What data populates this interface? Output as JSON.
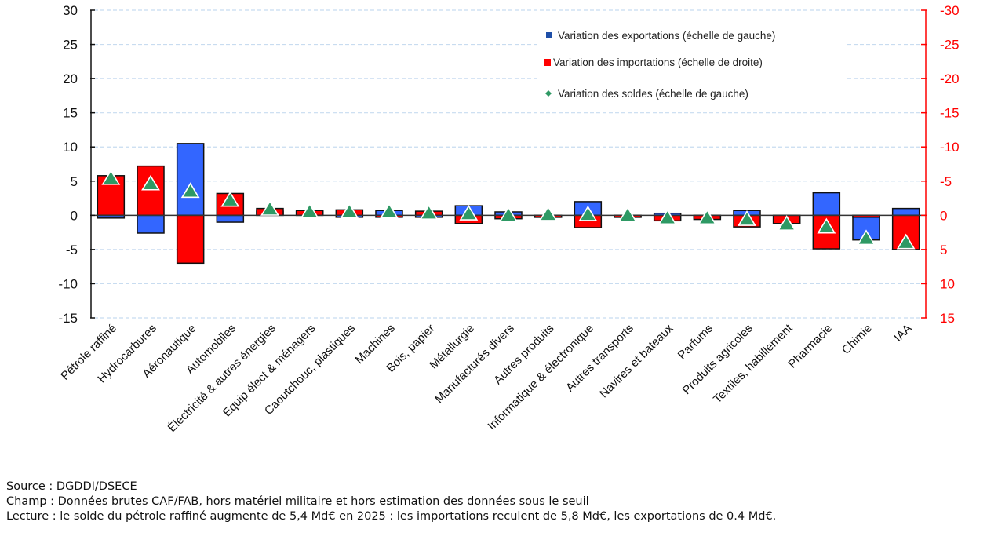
{
  "chart_data": {
    "type": "bar",
    "title": "",
    "xlabel": "",
    "ylabel_left": "",
    "ylabel_right": "",
    "ylim_left": [
      -15,
      30
    ],
    "ylim_right": [
      15,
      -30
    ],
    "yticks_left": [
      30,
      25,
      20,
      15,
      10,
      5,
      0,
      -5,
      -10,
      -15
    ],
    "yticks_right": [
      -30,
      -25,
      -20,
      -15,
      -10,
      -5,
      0,
      5,
      10,
      15
    ],
    "grid": true,
    "legend_position": "top-right",
    "categories": [
      "Pétrole raffiné",
      "Hydrocarbures",
      "Aéronautique",
      "Automobiles",
      "Électricité & autres énergies",
      "Equip élect & ménagers",
      "Caoutchouc, plastiques",
      "Machines",
      "Bois, papier",
      "Métallurgie",
      "Manufacturés divers",
      "Autres produits",
      "Informatique & électronique",
      "Autres transports",
      "Navires et bateaux",
      "Parfums",
      "Produits agricoles",
      "Textiles, habillement",
      "Pharmacie",
      "Chimie",
      "IAA"
    ],
    "series": [
      {
        "name": "Variation des exportations (échelle de gauche)",
        "type": "bar",
        "axis": "left",
        "color": "#3366ff",
        "values": [
          -0.4,
          -2.6,
          10.5,
          -1.0,
          0.6,
          0.6,
          -0.2,
          0.7,
          -0.2,
          1.4,
          0.5,
          -0.2,
          2.0,
          -0.2,
          0.3,
          -0.1,
          0.7,
          -1.2,
          3.3,
          -3.6,
          1.0
        ]
      },
      {
        "name": "Variation des importations (échelle de droite)",
        "type": "bar",
        "axis": "right",
        "color": "#ff0000",
        "values": [
          -5.8,
          -7.2,
          7.0,
          -3.2,
          -1.0,
          -0.7,
          -0.8,
          0.2,
          -0.6,
          1.2,
          0.5,
          0.2,
          1.8,
          0.2,
          0.8,
          0.6,
          1.7,
          1.2,
          4.9,
          0.0,
          5.0
        ]
      },
      {
        "name": "Variation des soldes (échelle de gauche)",
        "type": "scatter",
        "axis": "left",
        "color": "#2e9964",
        "marker": "triangle",
        "values": [
          5.4,
          4.6,
          3.5,
          2.2,
          0.9,
          0.5,
          0.5,
          0.5,
          0.3,
          0.2,
          0.0,
          0.1,
          0.1,
          0.0,
          -0.4,
          -0.4,
          -0.6,
          -1.3,
          -1.7,
          -3.4,
          -4.0
        ]
      }
    ]
  },
  "legend": {
    "items": [
      {
        "label": "Variation des exportations (échelle de gauche)",
        "color": "#1f4fa8",
        "shape": "square"
      },
      {
        "label": "Variation des importations (échelle de droite)",
        "color": "#ff0000",
        "shape": "square"
      },
      {
        "label": "Variation des soldes (échelle de gauche)",
        "color": "#2e9964",
        "shape": "diamond"
      }
    ]
  },
  "notes": {
    "source": "Source : DGDDI/DSECE",
    "champ": "Champ : Données brutes CAF/FAB, hors matériel militaire et hors estimation des données sous le seuil",
    "lecture": "Lecture : le solde du pétrole raffiné augmente de 5,4 Md€ en 2025 : les importations reculent de 5,8 Md€, les exportations de 0.4 Md€."
  },
  "colors": {
    "exports_bar": "#3366ff",
    "imports_bar": "#ff0000",
    "balance_marker": "#2e9964",
    "right_axis": "#ff0000",
    "grid": "#c8dcf0"
  }
}
